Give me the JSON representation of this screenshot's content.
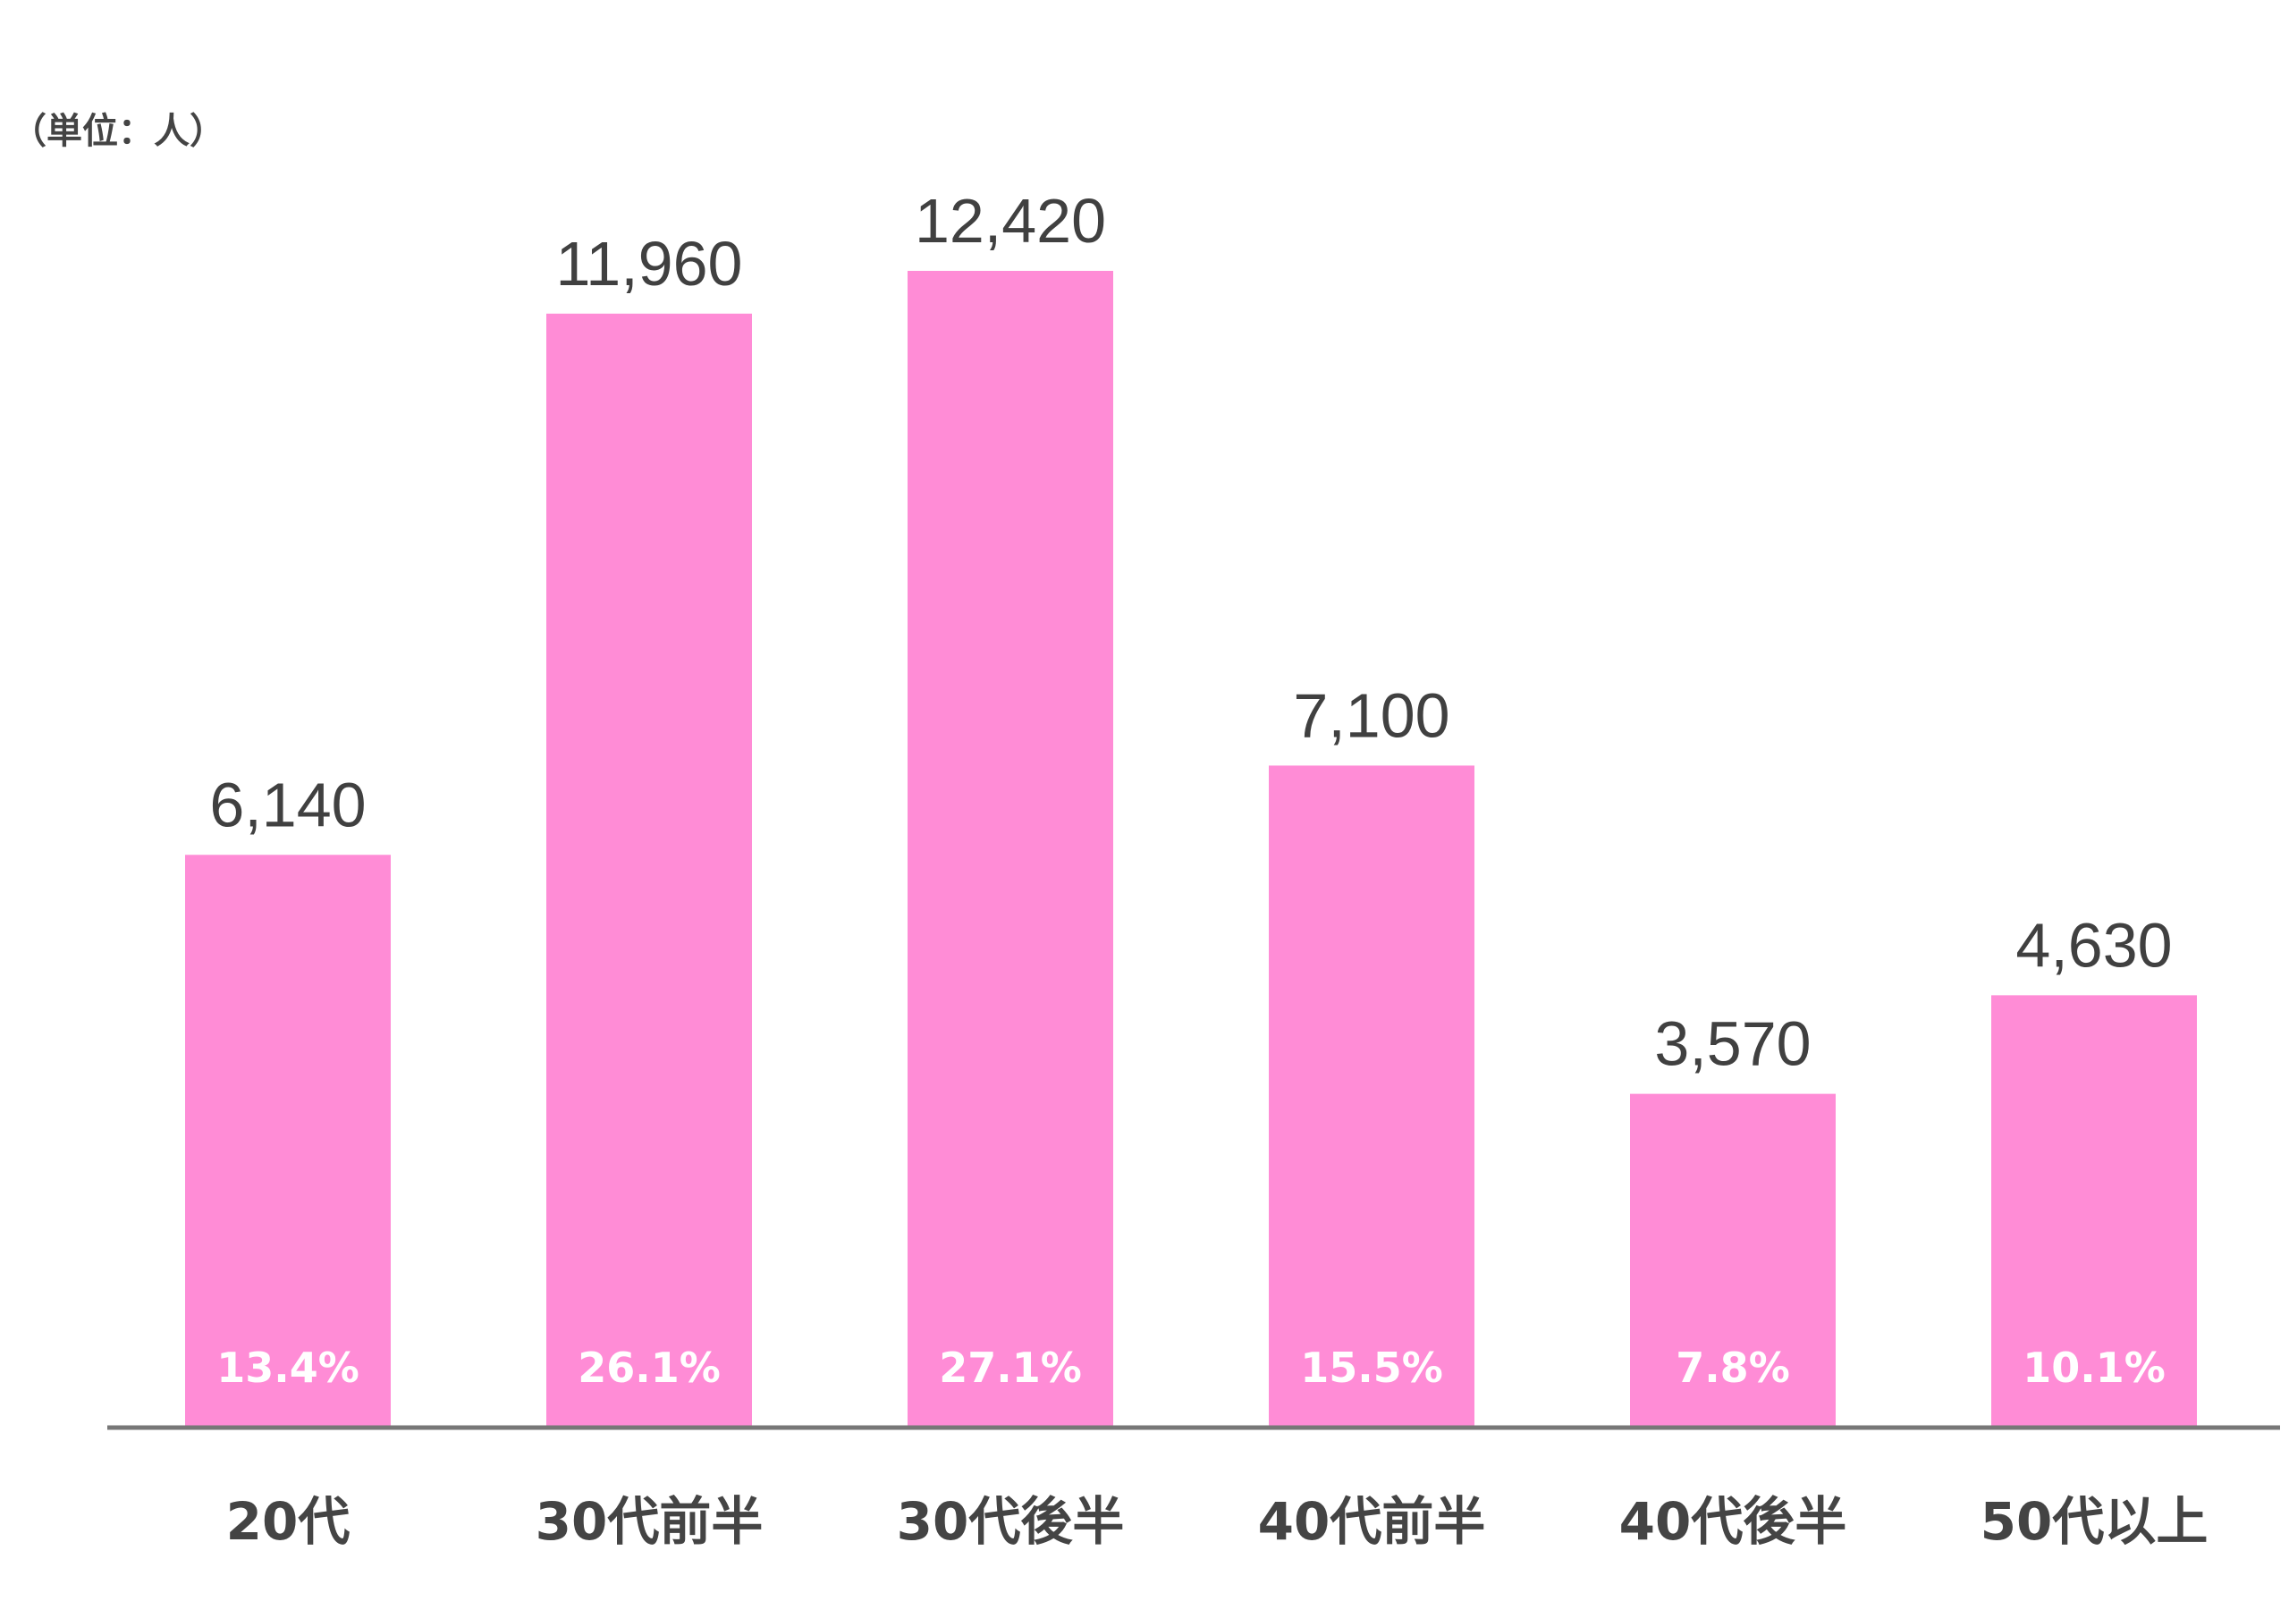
{
  "chart_data": {
    "type": "bar",
    "unit_label": "（単位：人）",
    "categories": [
      "20代",
      "30代前半",
      "30代後半",
      "40代前半",
      "40代後半",
      "50代以上"
    ],
    "values": [
      6140,
      11960,
      12420,
      7100,
      3570,
      4630
    ],
    "value_labels": [
      "6,140",
      "11,960",
      "12,420",
      "7,100",
      "3,570",
      "4,630"
    ],
    "percentages": [
      "13.4%",
      "26.1%",
      "27.1%",
      "15.5%",
      "7.8%",
      "10.1%"
    ],
    "bar_color": "#FF8CD6",
    "axis_color": "#777777",
    "grid": false,
    "legend": "none",
    "ylim": [
      0,
      12420
    ]
  }
}
